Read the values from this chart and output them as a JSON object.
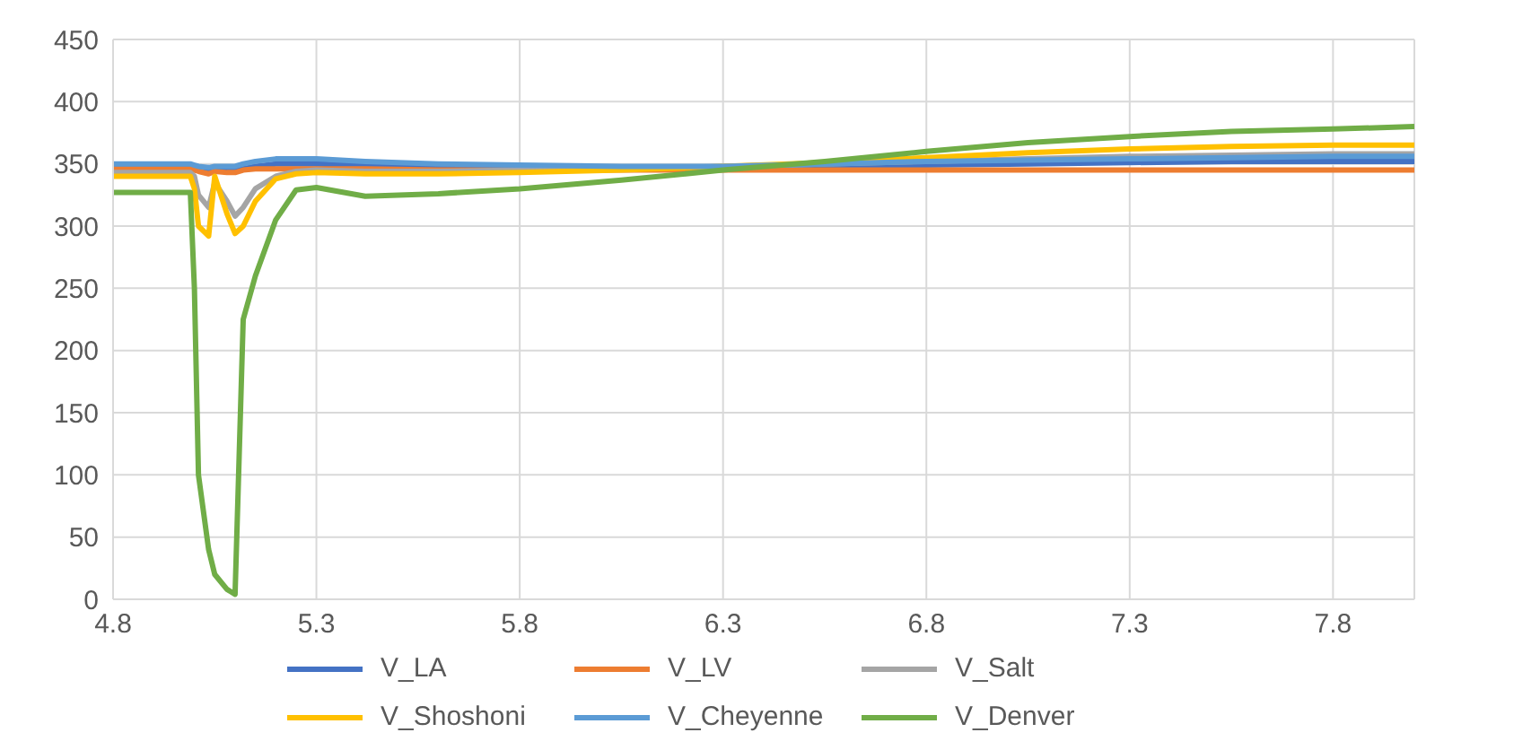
{
  "chart_data": {
    "type": "line",
    "x": [
      4.8,
      4.9,
      4.99,
      5.0,
      5.01,
      5.035,
      5.05,
      5.08,
      5.1,
      5.12,
      5.15,
      5.2,
      5.25,
      5.3,
      5.42,
      5.6,
      5.8,
      6.05,
      6.3,
      6.55,
      6.8,
      7.05,
      7.3,
      7.55,
      7.8,
      8.0
    ],
    "series": [
      {
        "name": "V_LA",
        "color": "#4472c4",
        "values": [
          348,
          348,
          348,
          347,
          345,
          344,
          345,
          344,
          344,
          346,
          348,
          350,
          350,
          350,
          349,
          348,
          347,
          347,
          347,
          348,
          349,
          350,
          351,
          352,
          352,
          352
        ]
      },
      {
        "name": "V_LV",
        "color": "#ed7d31",
        "values": [
          346,
          346,
          346,
          345,
          344,
          342,
          344,
          343,
          343,
          345,
          346,
          346,
          346,
          346,
          346,
          345,
          345,
          345,
          345,
          345,
          345,
          345,
          345,
          345,
          345,
          345
        ]
      },
      {
        "name": "V_Salt",
        "color": "#a5a5a5",
        "values": [
          343,
          343,
          343,
          340,
          325,
          315,
          335,
          320,
          308,
          315,
          330,
          340,
          344,
          345,
          344,
          344,
          345,
          346,
          348,
          350,
          352,
          354,
          356,
          357,
          358,
          358
        ]
      },
      {
        "name": "V_Shoshoni",
        "color": "#ffc000",
        "values": [
          340,
          340,
          340,
          330,
          300,
          292,
          340,
          310,
          294,
          300,
          320,
          338,
          342,
          343,
          342,
          342,
          343,
          345,
          348,
          351,
          355,
          359,
          362,
          364,
          365,
          365
        ]
      },
      {
        "name": "V_Cheyenne",
        "color": "#5b9bd5",
        "values": [
          350,
          350,
          350,
          349,
          348,
          347,
          348,
          348,
          348,
          350,
          352,
          354,
          354,
          354,
          352,
          350,
          349,
          348,
          348,
          350,
          352,
          353,
          354,
          355,
          356,
          356
        ]
      },
      {
        "name": "V_Denver",
        "color": "#70ad47",
        "values": [
          327,
          327,
          327,
          250,
          100,
          40,
          20,
          8,
          4,
          225,
          260,
          305,
          329,
          331,
          324,
          326,
          330,
          337,
          345,
          352,
          360,
          367,
          372,
          376,
          378,
          380
        ]
      }
    ],
    "xlim": [
      4.8,
      8.0
    ],
    "xticks": [
      4.8,
      5.3,
      5.8,
      6.3,
      6.8,
      7.3,
      7.8
    ],
    "ylim": [
      0,
      450
    ],
    "yticks": [
      0,
      50,
      100,
      150,
      200,
      250,
      300,
      350,
      400,
      450
    ],
    "grid": true,
    "legend": "bottom",
    "marker": "none",
    "line_style": "solid"
  }
}
